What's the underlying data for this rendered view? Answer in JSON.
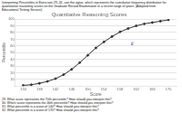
{
  "header": [
    "Interpreting Percentiles in Exercises 29–32, use the ogive, which represents the cumulative frequency distribution for",
    "quantitative reasoning scores on the Graduate Record Examination in a recent range of years. (Adapted from",
    "Educational Testing Service)"
  ],
  "questions": [
    "29. What score represents the 70th percentile? How should you interpret this?",
    "30. Which score represents the 40th percentile? How should you interpret this?",
    "31. What percentile is a score of 140? How should you interpret this?",
    "32. What percentile is a score of 170? How should you interpret this?"
  ],
  "chart_data": {
    "type": "line",
    "title": "Quantitative Reasoning Scores",
    "xlabel": "Score",
    "ylabel": "Percentile",
    "x": [
      134,
      136,
      138,
      140,
      142,
      144,
      146,
      148,
      150,
      152,
      154,
      156,
      158,
      160,
      162,
      164,
      166,
      168,
      170
    ],
    "values": [
      1,
      2,
      4,
      7,
      11,
      17,
      25,
      35,
      46,
      57,
      66,
      74,
      81,
      86,
      90,
      93,
      95,
      97,
      99
    ],
    "color": "#333333",
    "marker": "point",
    "xlim": [
      132,
      172
    ],
    "ylim": [
      0,
      100
    ],
    "xticks": [
      134,
      138,
      142,
      146,
      150,
      154,
      158,
      162,
      166,
      170
    ],
    "yticks": [
      10,
      20,
      30,
      40,
      50,
      60,
      70,
      80,
      90,
      100
    ],
    "grid": "y",
    "annotations": [
      {
        "x": 161,
        "y": 63,
        "text": "d",
        "color": "#3333cc"
      }
    ]
  }
}
